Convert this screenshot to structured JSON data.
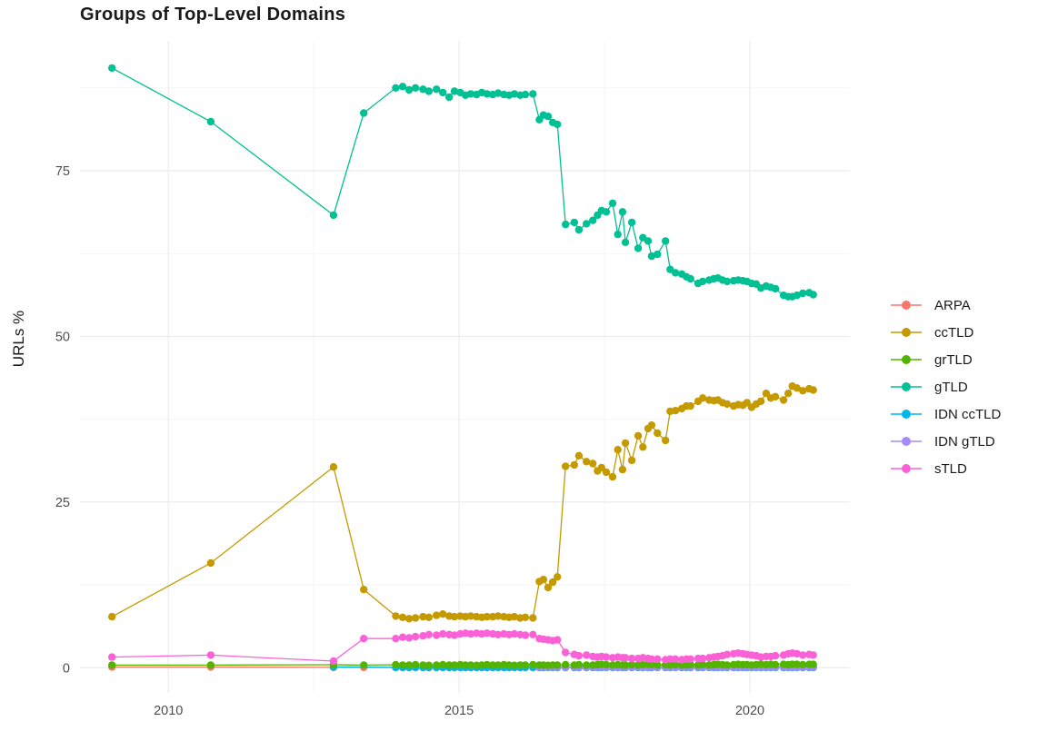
{
  "chart_data": {
    "type": "line",
    "title": "Groups of Top-Level Domains",
    "ylabel": "URLs %",
    "xlabel": "",
    "grid": "on",
    "legend_position": "right",
    "x_axis": {
      "range": [
        2008.48,
        2021.72
      ],
      "ticks": [
        2010,
        2015,
        2020
      ],
      "tick_labels": [
        "2010",
        "2015",
        "2020"
      ],
      "minor_ticks": [
        2012.5,
        2017.5
      ]
    },
    "y_axis": {
      "range": [
        -3.8,
        94.6
      ],
      "ticks": [
        0,
        25,
        50,
        75
      ],
      "tick_labels": [
        "0",
        "25",
        "50",
        "75"
      ],
      "minor_ticks": [
        12.5,
        37.5,
        62.5,
        87.5
      ]
    },
    "x_arrays": {
      "main": [
        2009.03,
        2010.73,
        2012.84,
        2013.36,
        2013.91,
        2014.03,
        2014.14,
        2014.25,
        2014.38,
        2014.48,
        2014.61,
        2014.72,
        2014.83,
        2014.92,
        2015.02,
        2015.11,
        2015.2,
        2015.3,
        2015.39,
        2015.48,
        2015.58,
        2015.67,
        2015.77,
        2015.86,
        2015.95,
        2016.05,
        2016.14,
        2016.27,
        2016.38,
        2016.45,
        2016.53,
        2016.61,
        2016.69,
        2016.83,
        2016.98,
        2017.06,
        2017.19,
        2017.3,
        2017.38,
        2017.45,
        2017.53,
        2017.64,
        2017.73,
        2017.81,
        2017.86,
        2017.97,
        2018.08,
        2018.16,
        2018.25,
        2018.31,
        2018.41,
        2018.55,
        2018.63,
        2018.72,
        2018.83,
        2018.91,
        2018.98,
        2019.11,
        2019.19,
        2019.3,
        2019.38,
        2019.45,
        2019.53,
        2019.61,
        2019.72,
        2019.8,
        2019.88,
        2019.95,
        2020.03,
        2020.11,
        2020.19,
        2020.28,
        2020.36,
        2020.44,
        2020.58,
        2020.66,
        2020.73,
        2020.81,
        2020.91,
        2021.02,
        2021.09
      ],
      "idn_cc": [
        2012.84,
        2013.91,
        2014.03,
        2014.14,
        2014.25,
        2014.38,
        2014.48,
        2014.61,
        2014.72,
        2014.83,
        2014.92,
        2015.02,
        2015.11,
        2015.2,
        2015.3,
        2015.39,
        2015.48,
        2015.58,
        2015.67,
        2015.77,
        2015.86,
        2015.95,
        2016.05,
        2016.14,
        2016.27,
        2016.38,
        2016.45,
        2016.53,
        2016.61,
        2016.69,
        2016.83,
        2016.98,
        2017.06,
        2017.19,
        2017.3,
        2017.38,
        2017.45,
        2017.53,
        2017.64,
        2017.73,
        2017.81,
        2017.86,
        2017.97,
        2018.08,
        2018.16,
        2018.25,
        2018.31,
        2018.41,
        2018.55,
        2018.63,
        2018.72,
        2018.83,
        2018.91,
        2018.98,
        2019.11,
        2019.19,
        2019.3,
        2019.38,
        2019.45,
        2019.53,
        2019.61,
        2019.72,
        2019.8,
        2019.88,
        2019.95,
        2020.03,
        2020.11,
        2020.19,
        2020.28,
        2020.36,
        2020.44,
        2020.58,
        2020.66,
        2020.73,
        2020.81,
        2020.91,
        2021.02,
        2021.09
      ],
      "idn_g": [
        2016.38,
        2016.45,
        2016.53,
        2016.61,
        2016.69,
        2016.83,
        2016.98,
        2017.06,
        2017.19,
        2017.3,
        2017.38,
        2017.45,
        2017.53,
        2017.64,
        2017.73,
        2017.81,
        2017.86,
        2017.97,
        2018.08,
        2018.16,
        2018.25,
        2018.31,
        2018.41,
        2018.55,
        2018.63,
        2018.72,
        2018.83,
        2018.91,
        2018.98,
        2019.11,
        2019.19,
        2019.3,
        2019.38,
        2019.45,
        2019.53,
        2019.61,
        2019.72,
        2019.8,
        2019.88,
        2019.95,
        2020.03,
        2020.11,
        2020.19,
        2020.28,
        2020.36,
        2020.44,
        2020.58,
        2020.66,
        2020.73,
        2020.81,
        2020.91,
        2021.02,
        2021.09
      ]
    },
    "series": [
      {
        "name": "ARPA",
        "color": "#F8766D",
        "x_ref": "main",
        "z": 0,
        "y": [
          0.1,
          0.1,
          0.05,
          0.05,
          0.02,
          0.02,
          0.02,
          0.02,
          0.02,
          0.02,
          0.02,
          0.02,
          0.02,
          0.02,
          0.02,
          0.02,
          0.02,
          0.02,
          0.02,
          0.02,
          0.02,
          0.02,
          0.02,
          0.02,
          0.02,
          0.02,
          0.02,
          0.02,
          0.02,
          0.02,
          0.02,
          0.02,
          0.02,
          0.02,
          0.02,
          0.02,
          0.02,
          0.02,
          0.02,
          0.02,
          0.02,
          0.02,
          0.02,
          0.02,
          0.02,
          0.02,
          0.02,
          0.02,
          0.02,
          0.02,
          0.02,
          0.02,
          0.02,
          0.02,
          0.02,
          0.02,
          0.02,
          0.02,
          0.02,
          0.02,
          0.02,
          0.02,
          0.02,
          0.02,
          0.02,
          0.02,
          0.02,
          0.02,
          0.02,
          0.02,
          0.02,
          0.02,
          0.02,
          0.02,
          0.02,
          0.02,
          0.02,
          0.02,
          0.02,
          0.02,
          0.02
        ]
      },
      {
        "name": "ccTLD",
        "color": "#C49A00",
        "x_ref": "main",
        "z": 4,
        "y": [
          7.7,
          15.8,
          30.3,
          11.8,
          7.8,
          7.6,
          7.4,
          7.5,
          7.7,
          7.6,
          7.9,
          8.1,
          7.8,
          7.7,
          7.8,
          7.7,
          7.8,
          7.7,
          7.6,
          7.7,
          7.7,
          7.8,
          7.7,
          7.6,
          7.7,
          7.5,
          7.6,
          7.5,
          13.0,
          13.3,
          12.1,
          12.9,
          13.7,
          30.4,
          30.6,
          32.0,
          31.1,
          30.8,
          29.7,
          30.2,
          29.5,
          28.8,
          32.9,
          29.9,
          33.9,
          31.3,
          35.0,
          33.3,
          36.1,
          36.6,
          35.4,
          34.3,
          38.7,
          38.8,
          39.1,
          39.5,
          39.5,
          40.2,
          40.7,
          40.4,
          40.3,
          40.4,
          40.0,
          39.8,
          39.5,
          39.7,
          39.6,
          40.0,
          39.3,
          39.8,
          40.2,
          41.4,
          40.7,
          40.9,
          40.4,
          41.4,
          42.5,
          42.2,
          41.8,
          42.1,
          41.9
        ]
      },
      {
        "name": "grTLD",
        "color": "#53B400",
        "x_ref": "main",
        "z": 3,
        "y": [
          0.4,
          0.4,
          0.45,
          0.4,
          0.45,
          0.4,
          0.4,
          0.45,
          0.4,
          0.35,
          0.4,
          0.45,
          0.4,
          0.4,
          0.45,
          0.4,
          0.4,
          0.35,
          0.4,
          0.45,
          0.4,
          0.4,
          0.45,
          0.4,
          0.35,
          0.4,
          0.4,
          0.45,
          0.4,
          0.4,
          0.35,
          0.4,
          0.4,
          0.45,
          0.4,
          0.45,
          0.4,
          0.4,
          0.45,
          0.5,
          0.45,
          0.4,
          0.45,
          0.4,
          0.4,
          0.45,
          0.4,
          0.45,
          0.5,
          0.45,
          0.4,
          0.45,
          0.4,
          0.45,
          0.4,
          0.4,
          0.45,
          0.4,
          0.45,
          0.4,
          0.45,
          0.5,
          0.45,
          0.4,
          0.45,
          0.5,
          0.45,
          0.45,
          0.4,
          0.45,
          0.5,
          0.45,
          0.5,
          0.45,
          0.5,
          0.45,
          0.5,
          0.5,
          0.45,
          0.5,
          0.5
        ]
      },
      {
        "name": "gTLD",
        "color": "#00C094",
        "x_ref": "main",
        "z": 5,
        "y": [
          90.5,
          82.4,
          68.3,
          83.7,
          87.5,
          87.7,
          87.2,
          87.5,
          87.3,
          87.0,
          87.3,
          86.8,
          86.1,
          87.0,
          86.8,
          86.4,
          86.6,
          86.5,
          86.8,
          86.6,
          86.5,
          86.7,
          86.5,
          86.4,
          86.6,
          86.4,
          86.5,
          86.6,
          82.7,
          83.4,
          83.2,
          82.3,
          82.0,
          66.9,
          67.2,
          66.1,
          67.0,
          67.5,
          68.3,
          69.0,
          68.8,
          70.1,
          65.4,
          68.8,
          64.2,
          67.2,
          63.3,
          64.9,
          64.4,
          62.1,
          62.4,
          64.4,
          60.1,
          59.6,
          59.4,
          59.0,
          58.7,
          58.0,
          58.3,
          58.5,
          58.7,
          58.8,
          58.5,
          58.3,
          58.4,
          58.5,
          58.4,
          58.3,
          58.0,
          57.9,
          57.3,
          57.6,
          57.4,
          57.2,
          56.2,
          56.0,
          56.0,
          56.2,
          56.5,
          56.6,
          56.3
        ]
      },
      {
        "name": "IDN ccTLD",
        "color": "#00B6EB",
        "x_ref": "idn_cc",
        "z": 1,
        "y": [
          0.1,
          0.05,
          0.05,
          0.05,
          0.05,
          0.05,
          0.05,
          0.05,
          0.05,
          0.05,
          0.05,
          0.05,
          0.05,
          0.05,
          0.05,
          0.05,
          0.05,
          0.05,
          0.05,
          0.05,
          0.05,
          0.05,
          0.05,
          0.05,
          0.05,
          0.05,
          0.05,
          0.05,
          0.05,
          0.05,
          0.05,
          0.05,
          0.05,
          0.05,
          0.05,
          0.05,
          0.05,
          0.05,
          0.05,
          0.05,
          0.05,
          0.05,
          0.05,
          0.05,
          0.05,
          0.05,
          0.05,
          0.05,
          0.05,
          0.05,
          0.05,
          0.05,
          0.05,
          0.05,
          0.05,
          0.05,
          0.05,
          0.05,
          0.05,
          0.05,
          0.05,
          0.05,
          0.05,
          0.05,
          0.05,
          0.05,
          0.05,
          0.05,
          0.05,
          0.05,
          0.05,
          0.05,
          0.05,
          0.05,
          0.05,
          0.05,
          0.05,
          0.05
        ]
      },
      {
        "name": "IDN gTLD",
        "color": "#A58AFF",
        "x_ref": "idn_g",
        "z": 2,
        "y": [
          0.1,
          0.1,
          0.1,
          0.1,
          0.1,
          0.1,
          0.1,
          0.1,
          0.1,
          0.1,
          0.1,
          0.1,
          0.1,
          0.1,
          0.1,
          0.1,
          0.1,
          0.1,
          0.1,
          0.1,
          0.1,
          0.1,
          0.1,
          0.1,
          0.1,
          0.1,
          0.1,
          0.1,
          0.1,
          0.1,
          0.1,
          0.1,
          0.1,
          0.1,
          0.1,
          0.1,
          0.1,
          0.1,
          0.1,
          0.1,
          0.1,
          0.1,
          0.1,
          0.1,
          0.1,
          0.1,
          0.1,
          0.1,
          0.1,
          0.1,
          0.1,
          0.1,
          0.1
        ]
      },
      {
        "name": "sTLD",
        "color": "#FB61D7",
        "x_ref": "main",
        "z": 6,
        "y": [
          1.6,
          1.9,
          1.0,
          4.4,
          4.4,
          4.6,
          4.5,
          4.7,
          4.8,
          5.0,
          4.9,
          5.1,
          5.0,
          4.9,
          5.1,
          5.2,
          5.1,
          5.2,
          5.1,
          5.2,
          5.1,
          5.0,
          5.1,
          5.0,
          5.1,
          5.0,
          4.9,
          5.0,
          4.4,
          4.3,
          4.2,
          4.1,
          4.2,
          2.3,
          2.0,
          1.8,
          1.9,
          1.7,
          1.6,
          1.7,
          1.6,
          1.5,
          1.6,
          1.5,
          1.5,
          1.4,
          1.4,
          1.5,
          1.4,
          1.3,
          1.3,
          1.2,
          1.3,
          1.3,
          1.2,
          1.3,
          1.3,
          1.4,
          1.4,
          1.5,
          1.6,
          1.7,
          1.8,
          2.0,
          2.1,
          2.2,
          2.1,
          2.0,
          1.9,
          1.8,
          1.6,
          1.7,
          1.7,
          1.8,
          1.9,
          2.1,
          2.2,
          2.1,
          1.9,
          2.0,
          1.9
        ]
      }
    ],
    "style": {
      "major_grid_color": "#EBEBEB",
      "minor_grid_color": "#F3F3F3",
      "tick_text_color": "#4d4d4d",
      "title_color": "#1a1a1a",
      "background": "#ffffff"
    }
  }
}
